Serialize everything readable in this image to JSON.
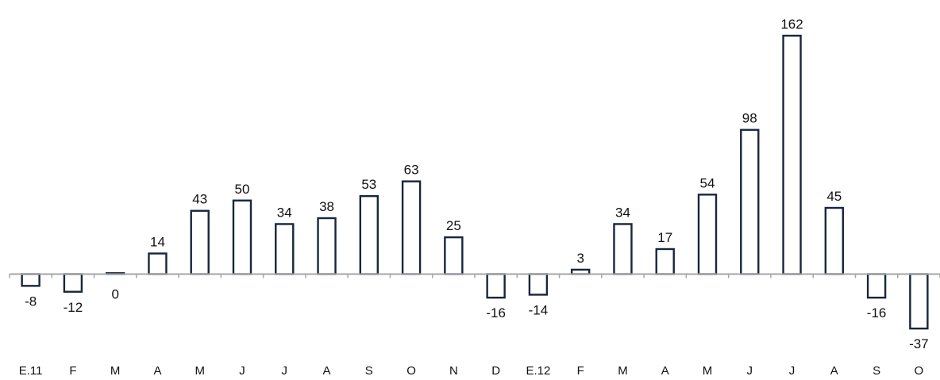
{
  "chart_data": {
    "type": "bar",
    "title": "",
    "xlabel": "",
    "ylabel": "",
    "ylim": [
      -45,
      170
    ],
    "grid": false,
    "legend": "none",
    "categories": [
      "E.11",
      "F",
      "M",
      "A",
      "M",
      "J",
      "J",
      "A",
      "S",
      "O",
      "N",
      "D",
      "E.12",
      "F",
      "M",
      "A",
      "M",
      "J",
      "J",
      "A",
      "S",
      "O"
    ],
    "values": [
      -8,
      -12,
      0,
      14,
      43,
      50,
      34,
      38,
      53,
      63,
      25,
      -16,
      -14,
      3,
      34,
      17,
      54,
      98,
      162,
      45,
      -16,
      -37
    ],
    "colors": {
      "bar_stroke": "#17263d",
      "bar_fill": "#ffffff",
      "axis": "#a6a6a6"
    }
  }
}
